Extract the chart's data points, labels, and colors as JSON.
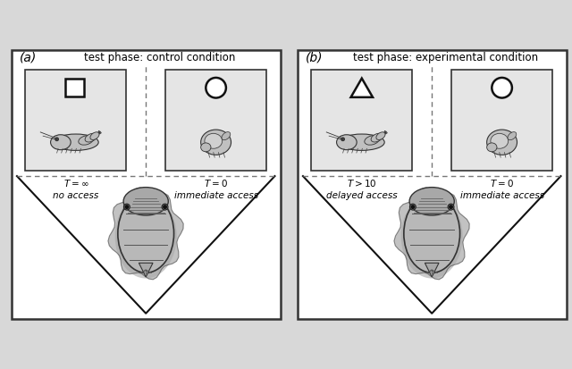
{
  "bg_color": "#d8d8d8",
  "panel_bg": "#ffffff",
  "title_a": "test phase: control condition",
  "title_b": "test phase: experimental condition",
  "label_a": "(a)",
  "label_b": "(b)",
  "card_bg": "#e8e8e8",
  "card_border": "#222222",
  "dashed_color": "#777777",
  "line_color": "#111111",
  "shrimp_color": "#aaaaaa",
  "fish_body": "#b0b0b0",
  "fish_shadow": "#909090"
}
